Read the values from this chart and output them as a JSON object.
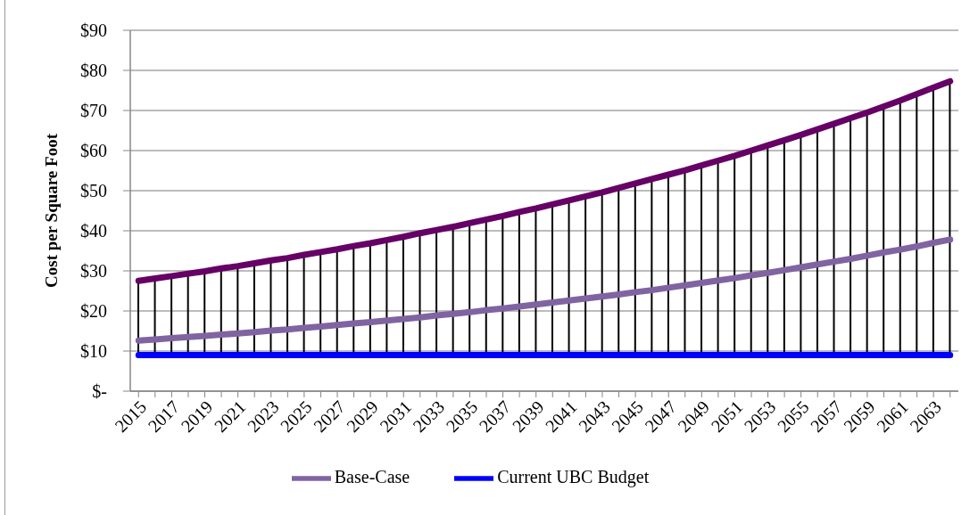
{
  "chart_data": {
    "type": "line",
    "ylabel": "Cost per Square Foot",
    "categories": [
      "2015",
      null,
      "2017",
      null,
      "2019",
      null,
      "2021",
      null,
      "2023",
      null,
      "2025",
      null,
      "2027",
      null,
      "2029",
      null,
      "2031",
      null,
      "2033",
      null,
      "2035",
      null,
      "2037",
      null,
      "2039",
      null,
      "2041",
      null,
      "2043",
      null,
      "2045",
      null,
      "2047",
      null,
      "2049",
      null,
      "2051",
      null,
      "2053",
      null,
      "2055",
      null,
      "2057",
      null,
      "2059",
      null,
      "2061",
      null,
      "2063",
      null
    ],
    "ylim": [
      0,
      90
    ],
    "yticks": [
      {
        "value": 0,
        "label": "$-"
      },
      {
        "value": 10,
        "label": "$10"
      },
      {
        "value": 20,
        "label": "$20"
      },
      {
        "value": 30,
        "label": "$30"
      },
      {
        "value": 40,
        "label": "$40"
      },
      {
        "value": 50,
        "label": "$50"
      },
      {
        "value": 60,
        "label": "$60"
      },
      {
        "value": 70,
        "label": "$70"
      },
      {
        "value": 80,
        "label": "$80"
      },
      {
        "value": 90,
        "label": "$90"
      }
    ],
    "grid": "y",
    "legend": "bottom",
    "marker": "none",
    "line_style": "solid",
    "series": [
      {
        "name": "Base-Case",
        "color": "#8064a2",
        "values": [
          12.6,
          12.9,
          13.2,
          13.5,
          13.8,
          14.1,
          14.4,
          14.7,
          15.1,
          15.4,
          15.8,
          16.1,
          16.5,
          16.9,
          17.2,
          17.6,
          18.0,
          18.4,
          18.9,
          19.3,
          19.7,
          20.2,
          20.6,
          21.1,
          21.6,
          22.1,
          22.6,
          23.1,
          23.6,
          24.1,
          24.7,
          25.2,
          25.8,
          26.4,
          27.0,
          27.6,
          28.2,
          28.9,
          29.5,
          30.2,
          30.9,
          31.6,
          32.3,
          33.0,
          33.8,
          34.6,
          35.3,
          36.1,
          37.0,
          37.8
        ]
      },
      {
        "color": "#660066",
        "values": [
          27.5,
          28.1,
          28.7,
          29.3,
          29.9,
          30.6,
          31.2,
          31.9,
          32.6,
          33.2,
          34.0,
          34.7,
          35.4,
          36.2,
          36.9,
          37.7,
          38.5,
          39.4,
          40.2,
          41.0,
          41.9,
          42.8,
          43.7,
          44.7,
          45.6,
          46.6,
          47.6,
          48.6,
          49.6,
          50.7,
          51.8,
          52.9,
          54.0,
          55.1,
          56.3,
          57.5,
          58.7,
          60.0,
          61.3,
          62.6,
          63.9,
          65.3,
          66.7,
          68.1,
          69.5,
          71.0,
          72.5,
          74.1,
          75.7,
          77.3
        ]
      },
      {
        "name": "Current UBC Budget",
        "color": "#0000ff",
        "values": [
          9,
          9,
          9,
          9,
          9,
          9,
          9,
          9,
          9,
          9,
          9,
          9,
          9,
          9,
          9,
          9,
          9,
          9,
          9,
          9,
          9,
          9,
          9,
          9,
          9,
          9,
          9,
          9,
          9,
          9,
          9,
          9,
          9,
          9,
          9,
          9,
          9,
          9,
          9,
          9,
          9,
          9,
          9,
          9,
          9,
          9,
          9,
          9,
          9,
          9
        ]
      },
      {
        "type": "bar",
        "color": "#000000",
        "base": [
          9,
          9,
          9,
          9,
          9,
          9,
          9,
          9,
          9,
          9,
          9,
          9,
          9,
          9,
          9,
          9,
          9,
          9,
          9,
          9,
          9,
          9,
          9,
          9,
          9,
          9,
          9,
          9,
          9,
          9,
          9,
          9,
          9,
          9,
          9,
          9,
          9,
          9,
          9,
          9,
          9,
          9,
          9,
          9,
          9,
          9,
          9,
          9,
          9,
          9
        ],
        "values": [
          18.5,
          19.1,
          19.7,
          20.3,
          20.9,
          21.6,
          22.2,
          22.9,
          23.6,
          24.2,
          25.0,
          25.7,
          26.4,
          27.2,
          27.9,
          28.7,
          29.5,
          30.4,
          31.2,
          32.0,
          32.9,
          33.8,
          34.7,
          35.7,
          36.6,
          37.6,
          38.6,
          39.6,
          40.6,
          41.7,
          42.8,
          43.9,
          45.0,
          46.1,
          47.3,
          48.5,
          49.7,
          51.0,
          52.3,
          53.6,
          54.9,
          56.3,
          57.7,
          59.1,
          60.5,
          62.0,
          63.5,
          65.1,
          66.7,
          68.3
        ]
      }
    ]
  }
}
